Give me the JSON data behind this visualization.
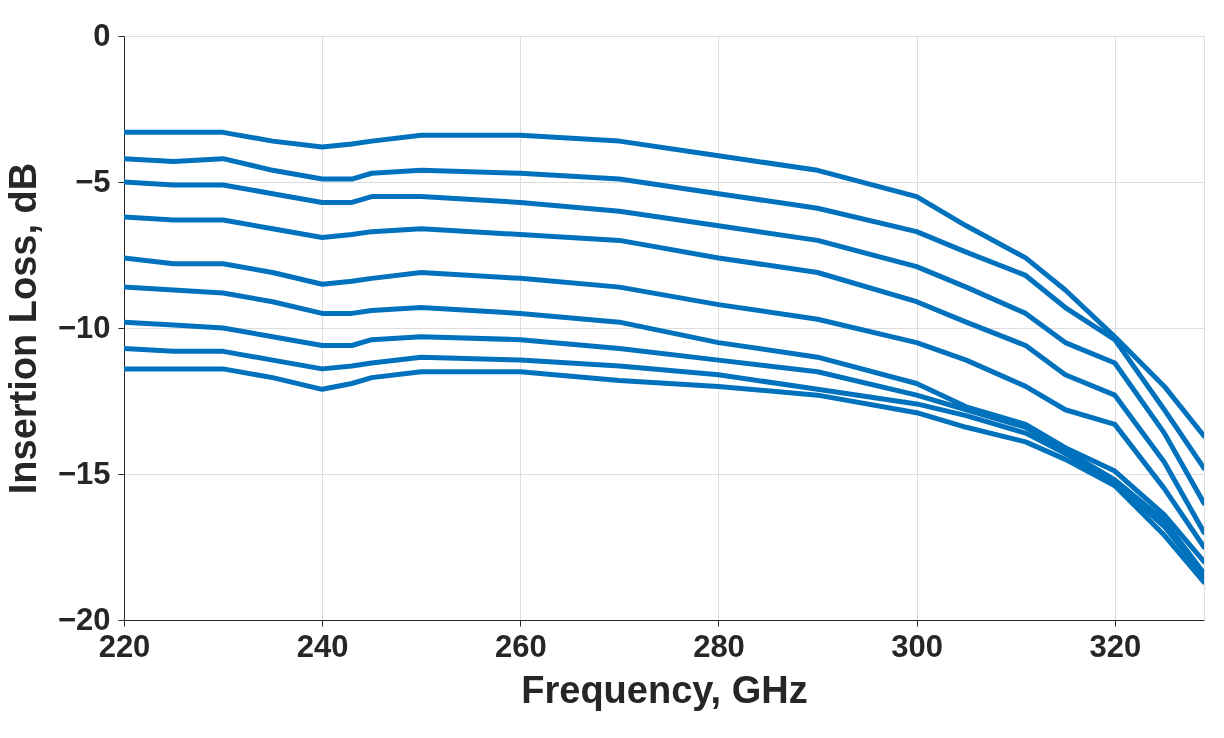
{
  "chart_data": {
    "type": "line",
    "xlabel": "Frequency, GHz",
    "ylabel": "Insertion Loss, dB",
    "x": [
      220,
      225,
      230,
      235,
      240,
      243,
      245,
      250,
      260,
      270,
      280,
      290,
      300,
      305,
      311,
      315,
      320,
      325,
      329
    ],
    "xlim": [
      220,
      329
    ],
    "xticks": [
      220,
      240,
      260,
      280,
      300,
      320
    ],
    "ylim": [
      -20,
      0
    ],
    "yticks": [
      -20,
      -15,
      -10,
      -5,
      0
    ],
    "grid": true,
    "legend": false,
    "marker": "none",
    "line_style": "solid",
    "series": [
      {
        "color": "#0072bd",
        "values": [
          -3.3,
          -3.3,
          -3.3,
          -3.6,
          -3.8,
          -3.7,
          -3.6,
          -3.4,
          -3.4,
          -3.6,
          -4.1,
          -4.6,
          -5.5,
          -6.5,
          -7.6,
          -8.7,
          -10.3,
          -12.0,
          -13.7
        ]
      },
      {
        "color": "#0072bd",
        "values": [
          -4.2,
          -4.3,
          -4.2,
          -4.6,
          -4.9,
          -4.9,
          -4.7,
          -4.6,
          -4.7,
          -4.9,
          -5.4,
          -5.9,
          -6.7,
          -7.4,
          -8.2,
          -9.3,
          -10.4,
          -12.8,
          -14.8
        ]
      },
      {
        "color": "#0072bd",
        "values": [
          -5.0,
          -5.1,
          -5.1,
          -5.4,
          -5.7,
          -5.7,
          -5.5,
          -5.5,
          -5.7,
          -6.0,
          -6.5,
          -7.0,
          -7.9,
          -8.6,
          -9.5,
          -10.5,
          -11.2,
          -13.6,
          -16.0
        ]
      },
      {
        "color": "#0072bd",
        "values": [
          -6.2,
          -6.3,
          -6.3,
          -6.6,
          -6.9,
          -6.8,
          -6.7,
          -6.6,
          -6.8,
          -7.0,
          -7.6,
          -8.1,
          -9.1,
          -9.8,
          -10.6,
          -11.6,
          -12.3,
          -14.6,
          -17.0
        ]
      },
      {
        "color": "#0072bd",
        "values": [
          -7.6,
          -7.8,
          -7.8,
          -8.1,
          -8.5,
          -8.4,
          -8.3,
          -8.1,
          -8.3,
          -8.6,
          -9.2,
          -9.7,
          -10.5,
          -11.1,
          -12.0,
          -12.8,
          -13.3,
          -15.5,
          -17.5
        ]
      },
      {
        "color": "#0072bd",
        "values": [
          -8.6,
          -8.7,
          -8.8,
          -9.1,
          -9.5,
          -9.5,
          -9.4,
          -9.3,
          -9.5,
          -9.8,
          -10.5,
          -11.0,
          -11.9,
          -12.7,
          -13.3,
          -14.1,
          -14.9,
          -16.4,
          -18.0
        ]
      },
      {
        "color": "#0072bd",
        "values": [
          -9.8,
          -9.9,
          -10.0,
          -10.3,
          -10.6,
          -10.6,
          -10.4,
          -10.3,
          -10.4,
          -10.7,
          -11.1,
          -11.5,
          -12.3,
          -12.8,
          -13.4,
          -14.2,
          -15.2,
          -16.6,
          -18.4
        ]
      },
      {
        "color": "#0072bd",
        "values": [
          -10.7,
          -10.8,
          -10.8,
          -11.1,
          -11.4,
          -11.3,
          -11.2,
          -11.0,
          -11.1,
          -11.3,
          -11.6,
          -12.1,
          -12.6,
          -13.0,
          -13.6,
          -14.3,
          -15.3,
          -16.8,
          -18.5
        ]
      },
      {
        "color": "#0072bd",
        "values": [
          -11.4,
          -11.4,
          -11.4,
          -11.7,
          -12.1,
          -11.9,
          -11.7,
          -11.5,
          -11.5,
          -11.8,
          -12.0,
          -12.3,
          -12.9,
          -13.4,
          -13.9,
          -14.5,
          -15.4,
          -17.1,
          -18.7
        ]
      }
    ]
  }
}
